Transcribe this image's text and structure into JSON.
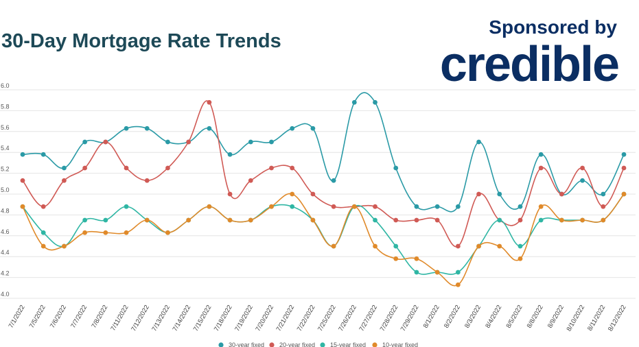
{
  "header": {
    "title": "30-Day Mortgage Rate Trends",
    "sponsor_text": "Sponsored by",
    "brand": "credible"
  },
  "colors": {
    "title": "#1d4957",
    "brand": "#0b2e63",
    "series": [
      "#2a9aa6",
      "#d05a55",
      "#2fb6a4",
      "#e08a2a"
    ]
  },
  "chart_data": {
    "type": "line",
    "title": "30-Day Mortgage Rate Trends",
    "xlabel": "",
    "ylabel": "",
    "ylim": [
      4.0,
      6.0
    ],
    "yticks": [
      "6.0",
      "5.8",
      "5.6",
      "5.4",
      "5.2",
      "5.0",
      "4.8",
      "4.6",
      "4.4",
      "4.2",
      "4.0"
    ],
    "grid": true,
    "legend_position": "bottom",
    "categories": [
      "7/1/2022",
      "7/5/2022",
      "7/6/2022",
      "7/7/2022",
      "7/8/2022",
      "7/11/2022",
      "7/12/2022",
      "7/13/2022",
      "7/14/2022",
      "7/15/2022",
      "7/18/2022",
      "7/19/2022",
      "7/20/2022",
      "7/21/2022",
      "7/22/2022",
      "7/25/2022",
      "7/26/2022",
      "7/27/2022",
      "7/28/2022",
      "7/29/2022",
      "8/1/2022",
      "8/2/2022",
      "8/3/2022",
      "8/4/2022",
      "8/5/2022",
      "8/8/2022",
      "8/9/2022",
      "8/10/2022",
      "8/11/2022",
      "8/12/2022"
    ],
    "series": [
      {
        "name": "30-year fixed",
        "values": [
          5.38,
          5.38,
          5.25,
          5.5,
          5.5,
          5.63,
          5.63,
          5.5,
          5.5,
          5.63,
          5.38,
          5.5,
          5.5,
          5.63,
          5.63,
          5.13,
          5.88,
          5.88,
          5.25,
          4.88,
          4.88,
          4.88,
          5.5,
          5.0,
          4.88,
          5.38,
          5.0,
          5.13,
          5.0,
          5.38
        ]
      },
      {
        "name": "20-year fixed",
        "values": [
          5.13,
          4.88,
          5.13,
          5.25,
          5.5,
          5.25,
          5.13,
          5.25,
          5.5,
          5.88,
          5.0,
          5.13,
          5.25,
          5.25,
          5.0,
          4.88,
          4.88,
          4.88,
          4.75,
          4.75,
          4.75,
          4.5,
          5.0,
          4.75,
          4.75,
          5.25,
          5.0,
          5.25,
          4.88,
          5.25
        ]
      },
      {
        "name": "15-year fixed",
        "values": [
          4.88,
          4.63,
          4.5,
          4.75,
          4.75,
          4.88,
          4.75,
          4.63,
          4.75,
          4.88,
          4.75,
          4.75,
          4.88,
          4.88,
          4.75,
          4.5,
          4.88,
          4.75,
          4.5,
          4.25,
          4.25,
          4.25,
          4.5,
          4.75,
          4.5,
          4.75,
          4.75,
          4.75,
          4.75,
          5.0
        ]
      },
      {
        "name": "10-year fixed",
        "values": [
          4.88,
          4.5,
          4.5,
          4.63,
          4.63,
          4.63,
          4.75,
          4.63,
          4.75,
          4.88,
          4.75,
          4.75,
          4.88,
          5.0,
          4.75,
          4.5,
          4.88,
          4.5,
          4.38,
          4.38,
          4.25,
          4.13,
          4.5,
          4.5,
          4.38,
          4.88,
          4.75,
          4.75,
          4.75,
          5.0
        ]
      }
    ]
  }
}
